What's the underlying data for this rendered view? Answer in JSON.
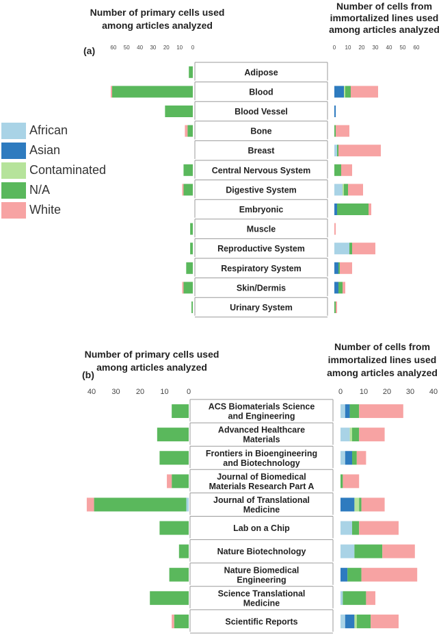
{
  "legend": [
    {
      "name": "African",
      "color": "#a9d3e6"
    },
    {
      "name": "Asian",
      "color": "#2e7bbf"
    },
    {
      "name": "Contaminated",
      "color": "#b6e39b"
    },
    {
      "name": "N/A",
      "color": "#5ab85c"
    },
    {
      "name": "White",
      "color": "#f7a3a3"
    }
  ],
  "chart_data": [
    {
      "type": "bar",
      "panel_label": "(a)",
      "left_title": [
        "Number of primary cells used",
        "among articles analyzed"
      ],
      "right_title": [
        "Number of cells from",
        "immortalized lines used",
        "among articles analyzed"
      ],
      "left_ticks": [
        "60",
        "50",
        "40",
        "30",
        "20",
        "10",
        "0"
      ],
      "right_ticks": [
        "0",
        "10",
        "20",
        "30",
        "40",
        "50",
        "60"
      ],
      "left_xlim": [
        0,
        62
      ],
      "right_xlim": [
        0,
        62
      ],
      "categories": [
        [
          "Adipose"
        ],
        [
          "Blood"
        ],
        [
          "Blood Vessel"
        ],
        [
          "Bone"
        ],
        [
          "Breast"
        ],
        [
          "Central Nervous System"
        ],
        [
          "Digestive System"
        ],
        [
          "Embryonic"
        ],
        [
          "Muscle"
        ],
        [
          "Reproductive System"
        ],
        [
          "Respiratory System"
        ],
        [
          "Skin/Dermis"
        ],
        [
          "Urinary System"
        ]
      ],
      "series_names": [
        "African",
        "Asian",
        "Contaminated",
        "N/A",
        "White"
      ],
      "primary": [
        [
          0,
          0,
          0,
          3,
          0
        ],
        [
          0,
          0,
          0,
          61,
          1
        ],
        [
          0,
          0,
          0,
          21,
          0
        ],
        [
          0,
          0,
          0,
          4,
          2
        ],
        [
          0,
          0,
          0,
          0,
          0
        ],
        [
          0,
          0,
          0,
          7,
          0
        ],
        [
          0,
          0,
          0,
          7,
          1
        ],
        [
          0,
          0,
          0,
          0,
          0
        ],
        [
          0,
          0,
          0,
          2,
          0
        ],
        [
          0,
          0,
          0,
          2,
          0
        ],
        [
          0,
          0,
          0,
          5,
          0
        ],
        [
          0,
          0,
          0,
          7,
          1
        ],
        [
          0,
          0,
          0,
          1,
          0
        ]
      ],
      "immortalized": [
        [
          0,
          0,
          0,
          0,
          0
        ],
        [
          0,
          7,
          1,
          4,
          20
        ],
        [
          0,
          1,
          0,
          0,
          0
        ],
        [
          0,
          0,
          0,
          1,
          10
        ],
        [
          2,
          0,
          0,
          1,
          31
        ],
        [
          0,
          0,
          0,
          5,
          8
        ],
        [
          6,
          0,
          1,
          3,
          11
        ],
        [
          0,
          2,
          0,
          23,
          2
        ],
        [
          0,
          0,
          0,
          0,
          1
        ],
        [
          11,
          0,
          0,
          2,
          17
        ],
        [
          0,
          3,
          0,
          1,
          9
        ],
        [
          0,
          3,
          0,
          3,
          2
        ],
        [
          0,
          0,
          0,
          1,
          1
        ]
      ]
    },
    {
      "type": "bar",
      "panel_label": "(b)",
      "left_title": [
        "Number of primary cells used",
        "among articles analyzed"
      ],
      "right_title": [
        "Number of cells from",
        "immortalized lines used",
        "among articles analyzed"
      ],
      "left_ticks": [
        "40",
        "30",
        "20",
        "10",
        "0"
      ],
      "right_ticks": [
        "0",
        "10",
        "20",
        "30",
        "40"
      ],
      "left_xlim": [
        0,
        40
      ],
      "right_xlim": [
        0,
        40
      ],
      "categories": [
        [
          "ACS Biomaterials Science",
          "and Engineering"
        ],
        [
          "Advanced Healthcare",
          "Materials"
        ],
        [
          "Frontiers in Bioengineering",
          "and Biotechnology"
        ],
        [
          "Journal of Biomedical",
          "Materials Research Part A"
        ],
        [
          "Journal of Translational",
          "Medicine"
        ],
        [
          "Lab on a Chip"
        ],
        [
          "Nature Biotechnology"
        ],
        [
          "Nature Biomedical",
          "Engineering"
        ],
        [
          "Science Translational",
          "Medicine"
        ],
        [
          "Scientific Reports"
        ]
      ],
      "series_names": [
        "African",
        "Asian",
        "Contaminated",
        "N/A",
        "White"
      ],
      "primary": [
        [
          0,
          0,
          0,
          7,
          0
        ],
        [
          0,
          0,
          0,
          13,
          0
        ],
        [
          0,
          0,
          0,
          12,
          0
        ],
        [
          0,
          0,
          0,
          7,
          2
        ],
        [
          1,
          0,
          0,
          38,
          3
        ],
        [
          0,
          0,
          0,
          12,
          0
        ],
        [
          0,
          0,
          0,
          4,
          0
        ],
        [
          0,
          0,
          0,
          8,
          0
        ],
        [
          0,
          0,
          0,
          16,
          0
        ],
        [
          0,
          0,
          0,
          6,
          1
        ]
      ],
      "immortalized": [
        [
          2,
          2,
          0,
          4,
          19
        ],
        [
          4,
          0,
          1,
          3,
          11
        ],
        [
          2,
          3,
          0,
          2,
          4
        ],
        [
          0,
          0,
          0,
          1,
          7
        ],
        [
          0,
          6,
          2,
          1,
          10
        ],
        [
          5,
          0,
          0,
          3,
          17
        ],
        [
          6,
          0,
          0,
          12,
          14
        ],
        [
          0,
          3,
          0,
          6,
          24
        ],
        [
          1,
          0,
          0,
          10,
          4
        ],
        [
          2,
          4,
          1,
          6,
          12
        ]
      ]
    }
  ]
}
